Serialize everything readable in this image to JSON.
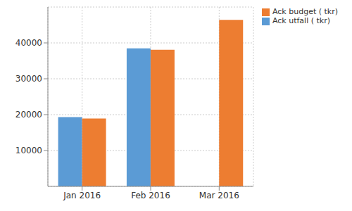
{
  "chart_data": {
    "type": "bar",
    "categories": [
      "Jan 2016",
      "Feb 2016",
      "Mar 2016"
    ],
    "series": [
      {
        "name": "Ack utfall ( tkr)",
        "color": "#5b9bd5",
        "values": [
          19300,
          38500,
          null
        ]
      },
      {
        "name": "Ack budget ( tkr)",
        "color": "#ed7d31",
        "values": [
          18900,
          38100,
          46400
        ]
      }
    ],
    "ylim": [
      0,
      50000
    ],
    "yticks": [
      10000,
      20000,
      30000,
      40000
    ],
    "grid": true,
    "legend": "top-right"
  }
}
